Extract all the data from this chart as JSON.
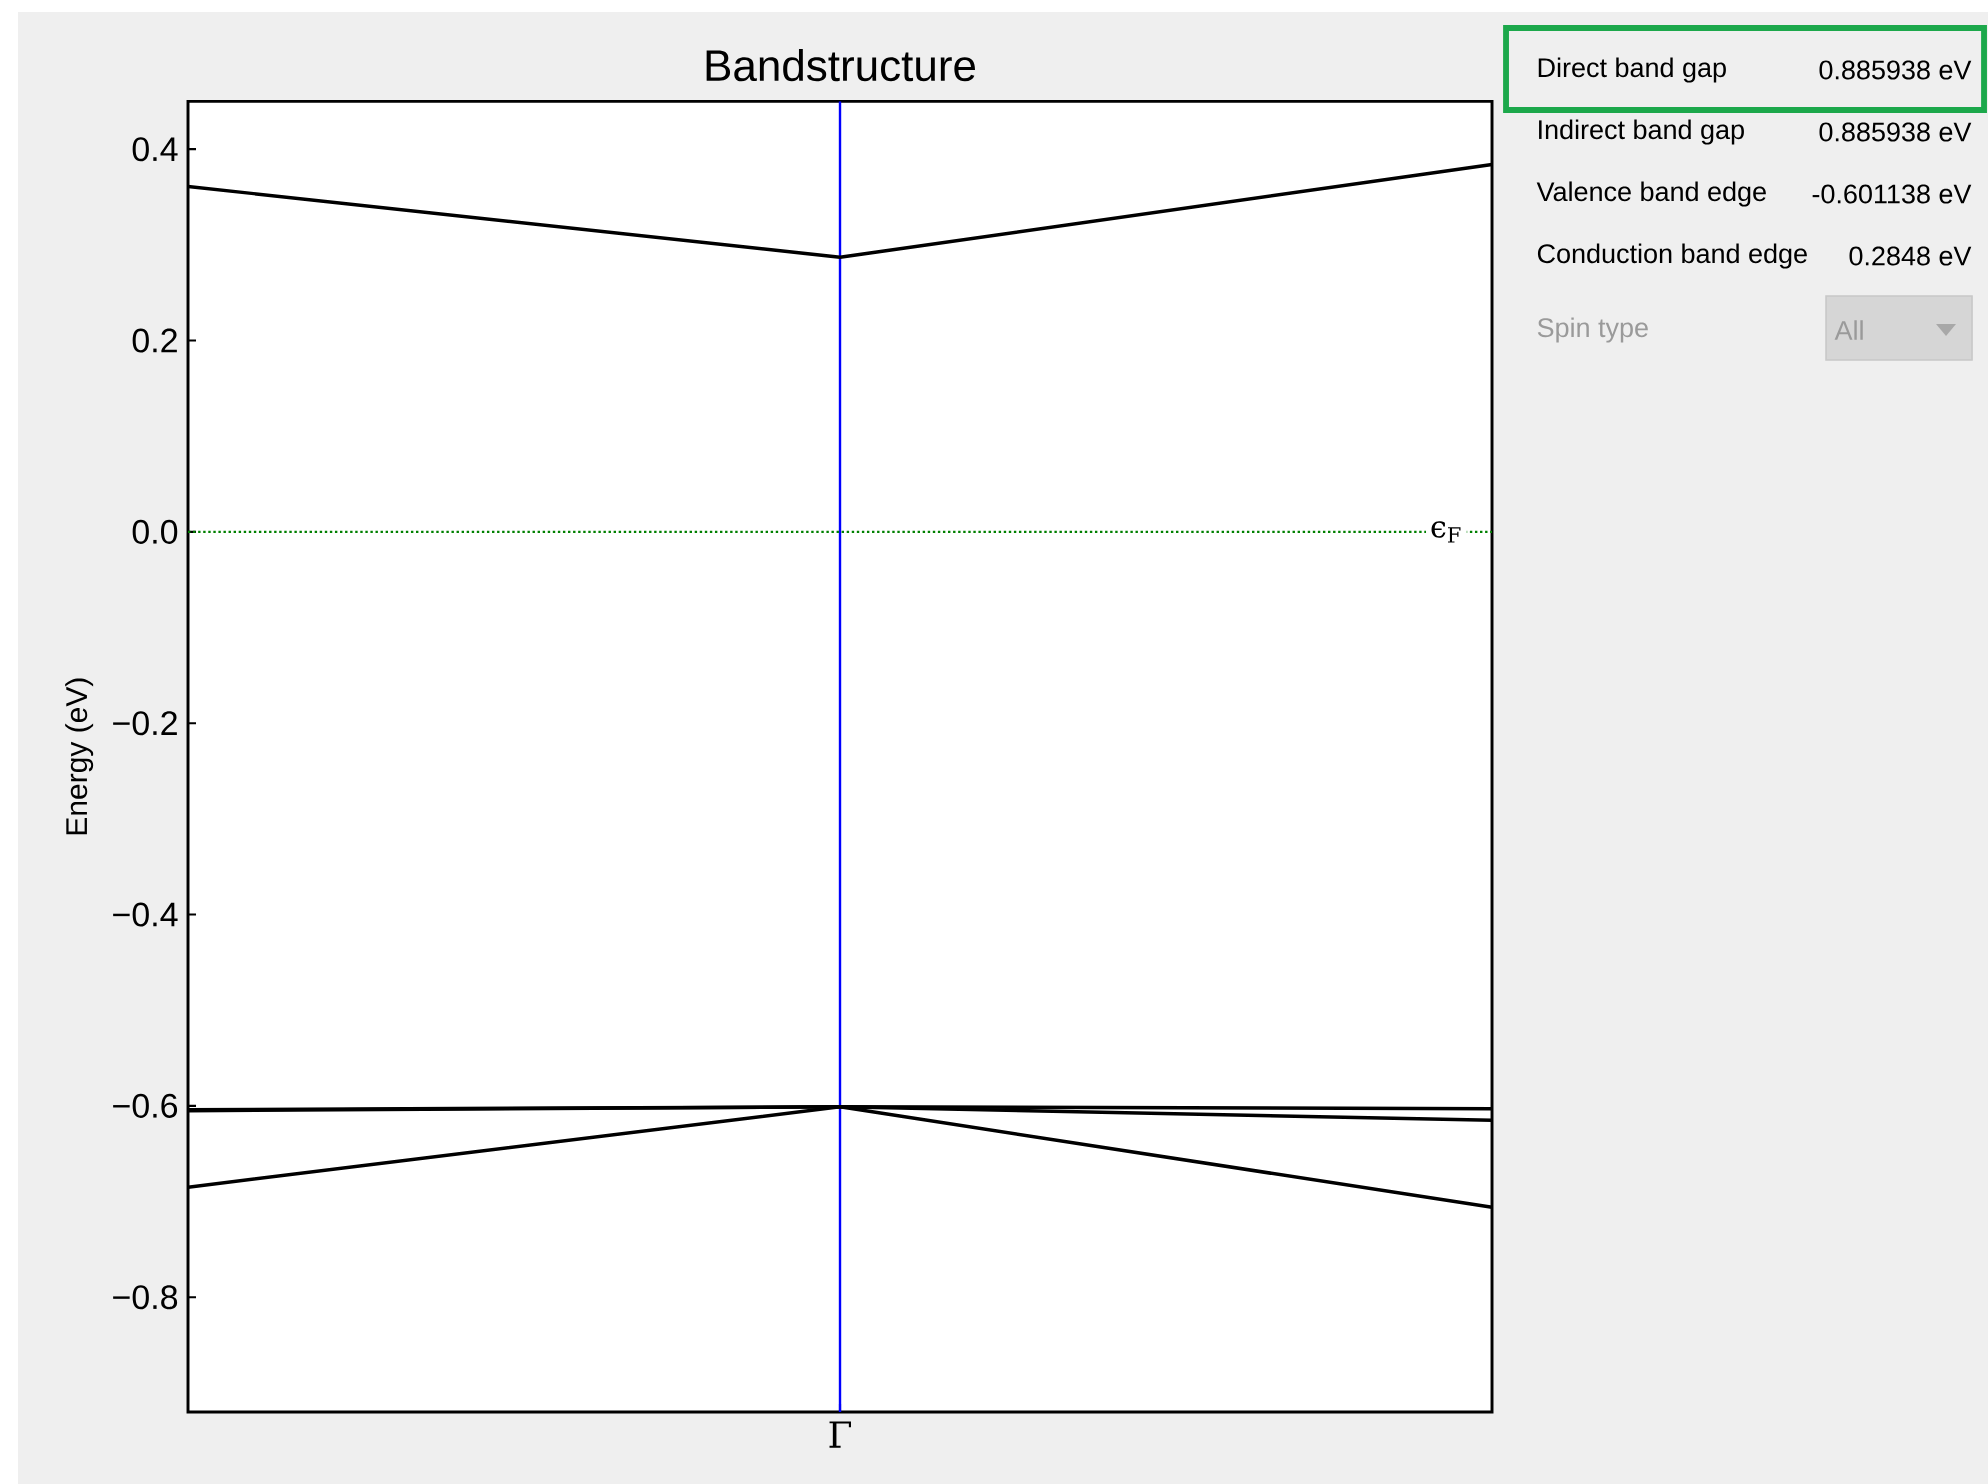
{
  "chart_data": [
    {
      "type": "line",
      "title": "Bandstructure",
      "ylabel": "Energy (eV)",
      "categories": [
        null,
        "Γ",
        null
      ],
      "series": [
        {
          "color": "#000000",
          "values": [
            0.361,
            0.287,
            0.384
          ]
        },
        {
          "color": "#000000",
          "values": [
            -0.604,
            -0.601,
            -0.603
          ]
        },
        {
          "color": "#000000",
          "values": [
            -0.605,
            -0.601,
            -0.615
          ]
        },
        {
          "color": "#000000",
          "values": [
            -0.685,
            -0.601,
            -0.706
          ]
        }
      ],
      "ylim": [
        -0.92,
        0.45
      ],
      "yticks": [
        {
          "value": -0.8,
          "label": "−0.8"
        },
        {
          "value": -0.6,
          "label": "−0.6"
        },
        {
          "value": -0.4,
          "label": "−0.4"
        },
        {
          "value": -0.2,
          "label": "−0.2"
        },
        {
          "value": 0,
          "label": "0.0"
        },
        0.2,
        0.4
      ],
      "ref_lines": [
        {
          "axis": "x",
          "value": "Γ",
          "color": "#0000ff"
        },
        {
          "axis": "y",
          "value": 0,
          "label": "ϵ$_{F}$",
          "color": "#008000",
          "line_style": "dotted"
        }
      ],
      "marker": "none",
      "line_style": "solid"
    },
    {
      "type": "other",
      "annotations": [
        "Direct band gap",
        "0.885938 eV",
        "Indirect band gap",
        "0.885938 eV",
        "Valence band edge",
        "-0.601138 eV",
        "Conduction band edge",
        "0.2848 eV",
        "Spin type",
        "All"
      ]
    }
  ]
}
